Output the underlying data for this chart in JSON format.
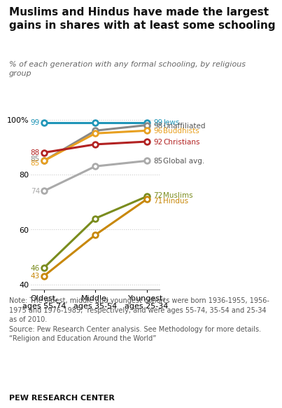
{
  "title": "Muslims and Hindus have made the largest\ngains in shares with at least some schooling",
  "subtitle": "% of each generation with any formal schooling, by religious\ngroup",
  "x_labels": [
    "Oldest,\nages 55-74",
    "Middle,\nages 35-54",
    "Youngest,\nages 25-34"
  ],
  "series": [
    {
      "name": "Jews",
      "color": "#2196b8",
      "values": [
        99,
        99,
        99
      ]
    },
    {
      "name": "Unaffiliated",
      "color": "#888888",
      "values": [
        85,
        96,
        98
      ]
    },
    {
      "name": "Buddhists",
      "color": "#e8a020",
      "values": [
        85,
        95,
        96
      ]
    },
    {
      "name": "Christians",
      "color": "#b22222",
      "values": [
        88,
        91,
        92
      ]
    },
    {
      "name": "Global avg.",
      "color": "#aaaaaa",
      "values": [
        74,
        83,
        85
      ]
    },
    {
      "name": "Muslims",
      "color": "#7a8c1e",
      "values": [
        46,
        64,
        72
      ]
    },
    {
      "name": "Hindus",
      "color": "#c8880a",
      "values": [
        43,
        58,
        71
      ]
    }
  ],
  "left_labels": [
    {
      "text": "99",
      "y": 99,
      "color": "#2196b8"
    },
    {
      "text": "88",
      "y": 88,
      "color": "#b22222"
    },
    {
      "text": "85",
      "y": 85.8,
      "color": "#888888"
    },
    {
      "text": "85",
      "y": 84.2,
      "color": "#e8a020"
    },
    {
      "text": "74",
      "y": 74,
      "color": "#aaaaaa"
    },
    {
      "text": "46",
      "y": 46,
      "color": "#7a8c1e"
    },
    {
      "text": "43",
      "y": 43,
      "color": "#c8880a"
    }
  ],
  "right_labels": [
    {
      "val": "99",
      "name": "Jews",
      "y": 99,
      "val_color": "#2196b8",
      "name_color": "#2196b8"
    },
    {
      "val": "98",
      "name": "Unaffiliated",
      "y": 97.8,
      "val_color": "#555555",
      "name_color": "#555555"
    },
    {
      "val": "96",
      "name": "Buddhists",
      "y": 96,
      "val_color": "#e8a020",
      "name_color": "#e8a020"
    },
    {
      "val": "92",
      "name": "Christians",
      "y": 92,
      "val_color": "#b22222",
      "name_color": "#b22222"
    },
    {
      "val": "85",
      "name": "Global avg.",
      "y": 85,
      "val_color": "#555555",
      "name_color": "#555555"
    },
    {
      "val": "72",
      "name": "Muslims",
      "y": 72.5,
      "val_color": "#7a8c1e",
      "name_color": "#7a8c1e"
    },
    {
      "val": "71",
      "name": "Hindus",
      "y": 70.5,
      "val_color": "#c8880a",
      "name_color": "#c8880a"
    }
  ],
  "ylim": [
    38,
    104
  ],
  "yticks": [
    40,
    60,
    80,
    100
  ],
  "ytick_labels": [
    "40",
    "60",
    "80",
    "100%"
  ],
  "note_line1": "Note: The oldest, middle and youngest cohorts were born 1936-1955, 1956-",
  "note_line2": "1975 and 1976-1985,  respectively, and were ages 55-74, 35-54 and 25-34",
  "note_line3": "as of 2010.",
  "note_line4": "Source: Pew Research Center analysis. See Methodology for more details.",
  "note_line5": "“Religion and Education Around the World”",
  "source_label": "PEW RESEARCH CENTER",
  "bg_color": "#ffffff",
  "grid_color": "#cccccc"
}
